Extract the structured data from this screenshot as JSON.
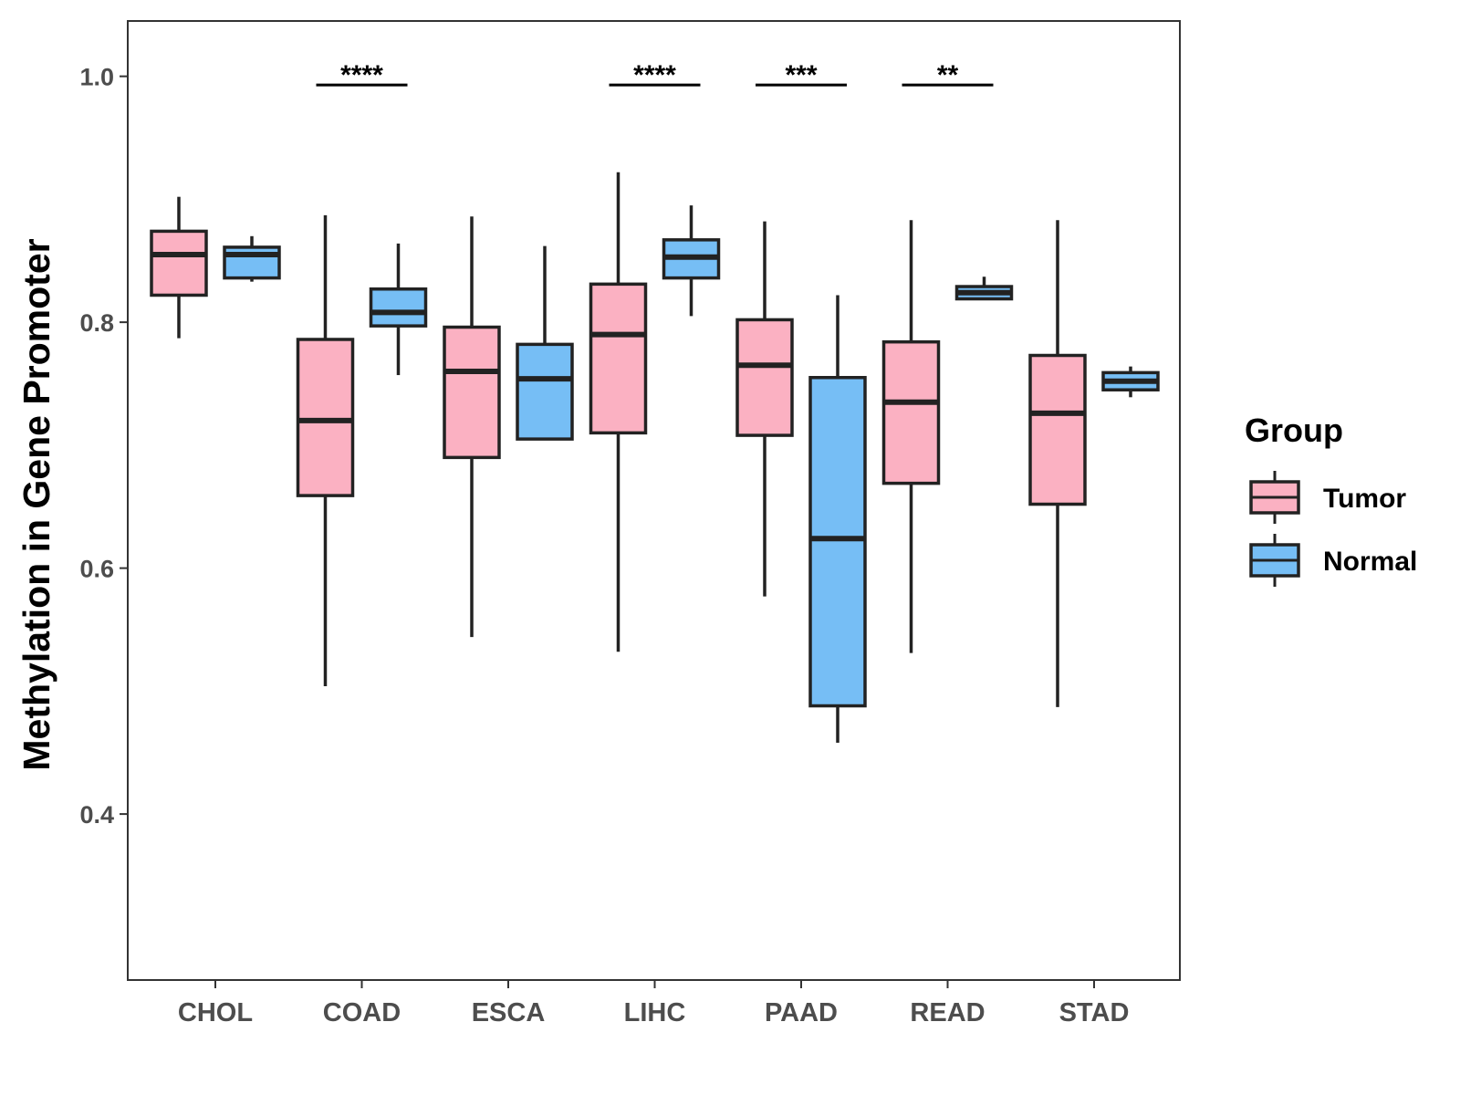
{
  "chart_data": {
    "type": "boxplot",
    "title": "",
    "xlabel": "",
    "ylabel": "Methylation in Gene Promoter",
    "ylim": [
      0.265,
      1.045
    ],
    "yticks": [
      0.4,
      0.6,
      0.8,
      1.0
    ],
    "ytick_labels": [
      "0.4",
      "0.6",
      "0.8",
      "1.0"
    ],
    "grid": false,
    "categories": [
      "CHOL",
      "COAD",
      "ESCA",
      "LIHC",
      "PAAD",
      "READ",
      "STAD"
    ],
    "series": [
      {
        "name": "Tumor",
        "color": "#fbb1c2",
        "boxes": [
          {
            "category": "CHOL",
            "min": 0.787,
            "q1": 0.822,
            "median": 0.855,
            "q3": 0.874,
            "max": 0.902
          },
          {
            "category": "COAD",
            "min": 0.504,
            "q1": 0.659,
            "median": 0.72,
            "q3": 0.786,
            "max": 0.887
          },
          {
            "category": "ESCA",
            "min": 0.544,
            "q1": 0.69,
            "median": 0.76,
            "q3": 0.796,
            "max": 0.886
          },
          {
            "category": "LIHC",
            "min": 0.532,
            "q1": 0.71,
            "median": 0.79,
            "q3": 0.831,
            "max": 0.922
          },
          {
            "category": "PAAD",
            "min": 0.577,
            "q1": 0.708,
            "median": 0.765,
            "q3": 0.802,
            "max": 0.882
          },
          {
            "category": "READ",
            "min": 0.531,
            "q1": 0.669,
            "median": 0.735,
            "q3": 0.784,
            "max": 0.883
          },
          {
            "category": "STAD",
            "min": 0.487,
            "q1": 0.652,
            "median": 0.726,
            "q3": 0.773,
            "max": 0.883
          }
        ]
      },
      {
        "name": "Normal",
        "color": "#76bef5",
        "boxes": [
          {
            "category": "CHOL",
            "min": 0.833,
            "q1": 0.836,
            "median": 0.855,
            "q3": 0.861,
            "max": 0.87
          },
          {
            "category": "COAD",
            "min": 0.757,
            "q1": 0.797,
            "median": 0.808,
            "q3": 0.827,
            "max": 0.864
          },
          {
            "category": "ESCA",
            "min": 0.705,
            "q1": 0.705,
            "median": 0.754,
            "q3": 0.782,
            "max": 0.862
          },
          {
            "category": "LIHC",
            "min": 0.805,
            "q1": 0.836,
            "median": 0.853,
            "q3": 0.867,
            "max": 0.895
          },
          {
            "category": "PAAD",
            "min": 0.458,
            "q1": 0.488,
            "median": 0.624,
            "q3": 0.755,
            "max": 0.822
          },
          {
            "category": "READ",
            "min": 0.818,
            "q1": 0.819,
            "median": 0.824,
            "q3": 0.829,
            "max": 0.837
          },
          {
            "category": "STAD",
            "min": 0.739,
            "q1": 0.745,
            "median": 0.752,
            "q3": 0.759,
            "max": 0.764
          }
        ]
      }
    ],
    "significance": [
      {
        "category": "COAD",
        "label": "****",
        "y": 0.993
      },
      {
        "category": "LIHC",
        "label": "****",
        "y": 0.993
      },
      {
        "category": "PAAD",
        "label": "***",
        "y": 0.993
      },
      {
        "category": "READ",
        "label": "**",
        "y": 0.993
      }
    ],
    "legend": {
      "title": "Group",
      "position": "right",
      "entries": [
        "Tumor",
        "Normal"
      ]
    },
    "colors": {
      "outline": "#222222",
      "axis": "#333333",
      "tick_text": "#4d4d4d"
    }
  }
}
